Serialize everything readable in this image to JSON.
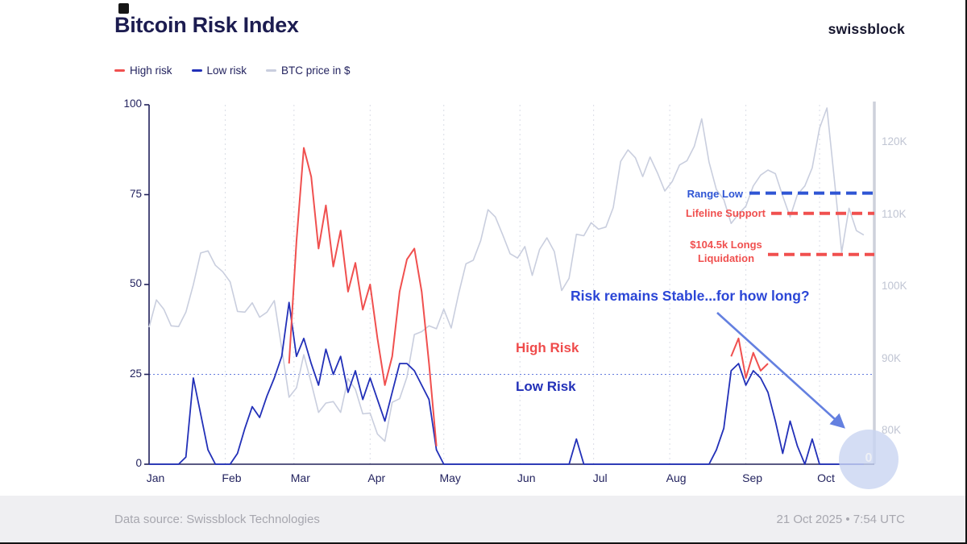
{
  "header": {
    "title": "Bitcoin Risk Index",
    "brand": "swissblock"
  },
  "legend": [
    {
      "label": "High risk",
      "color": "#f0504f"
    },
    {
      "label": "Low risk",
      "color": "#2230b8"
    },
    {
      "label": "BTC price in $",
      "color": "#c9cede"
    }
  ],
  "footer": {
    "source": "Data source: Swissblock Technologies",
    "timestamp": "21 Oct 2025 • 7:54 UTC"
  },
  "chart_data": {
    "type": "line",
    "title": "Bitcoin Risk Index",
    "period": "Jan–Oct 2025",
    "sample_step_days": 3,
    "months": [
      "Jan",
      "Feb",
      "Mar",
      "Apr",
      "May",
      "Jun",
      "Jul",
      "Aug",
      "Sep",
      "Oct"
    ],
    "month_start_days": [
      0,
      31,
      59,
      90,
      120,
      151,
      181,
      212,
      243,
      273
    ],
    "domain_days": [
      0,
      293
    ],
    "risk_axis": {
      "ticks": [
        0,
        25,
        50,
        75,
        100
      ],
      "range": [
        0,
        100
      ]
    },
    "price_axis": {
      "ticks": [
        "80K",
        "90K",
        "100K",
        "110K",
        "120K"
      ],
      "tick_values": [
        80,
        90,
        100,
        110,
        120
      ],
      "units": "thousand USD"
    },
    "threshold_line": {
      "value": 25,
      "color": "#4a66d8"
    },
    "series": [
      {
        "name": "High risk",
        "color": "#f0504f",
        "values": [
          null,
          null,
          null,
          null,
          null,
          null,
          null,
          null,
          null,
          null,
          null,
          null,
          null,
          null,
          null,
          null,
          null,
          null,
          null,
          28,
          62,
          88,
          80,
          60,
          72,
          55,
          65,
          48,
          56,
          43,
          50,
          35,
          22,
          30,
          48,
          57,
          60,
          48,
          28,
          5,
          null,
          null,
          null,
          null,
          null,
          null,
          null,
          null,
          null,
          null,
          null,
          null,
          null,
          null,
          null,
          null,
          null,
          null,
          null,
          null,
          null,
          null,
          null,
          null,
          null,
          null,
          null,
          null,
          null,
          null,
          null,
          null,
          null,
          null,
          null,
          null,
          null,
          null,
          null,
          30,
          35,
          24,
          31,
          26,
          28,
          null,
          null,
          null,
          null,
          null,
          null,
          null,
          null,
          null,
          null,
          null,
          null,
          null
        ]
      },
      {
        "name": "Low risk",
        "color": "#2230b8",
        "values": [
          0,
          0,
          0,
          0,
          0,
          2,
          24,
          14,
          4,
          0,
          0,
          0,
          3,
          10,
          16,
          13,
          19,
          24,
          30,
          45,
          30,
          35,
          28,
          22,
          32,
          25,
          30,
          20,
          26,
          18,
          24,
          18,
          12,
          20,
          28,
          28,
          26,
          22,
          18,
          4,
          0,
          0,
          0,
          0,
          0,
          0,
          0,
          0,
          0,
          0,
          0,
          0,
          0,
          0,
          0,
          0,
          0,
          0,
          7,
          0,
          0,
          0,
          0,
          0,
          0,
          0,
          0,
          0,
          0,
          0,
          0,
          0,
          0,
          0,
          0,
          0,
          0,
          4,
          10,
          26,
          28,
          22,
          26,
          24,
          20,
          12,
          3,
          12,
          5,
          0,
          7,
          0,
          0,
          0,
          0,
          0,
          0,
          0
        ]
      },
      {
        "name": "BTC price in $",
        "color": "#c9cede",
        "values": [
          94.4,
          98.2,
          96.9,
          94.6,
          94.5,
          96.5,
          100.3,
          104.7,
          105.0,
          103.0,
          102.1,
          100.7,
          96.6,
          96.5,
          97.8,
          95.8,
          96.5,
          98.1,
          91.5,
          84.7,
          86.0,
          90.6,
          86.7,
          82.6,
          83.9,
          84.1,
          82.6,
          87.3,
          85.8,
          82.4,
          82.5,
          79.6,
          78.6,
          84.0,
          84.5,
          87.5,
          93.4,
          93.8,
          94.6,
          94.2,
          96.9,
          94.3,
          99.0,
          103.2,
          103.7,
          106.4,
          110.7,
          109.7,
          107.2,
          104.6,
          104.0,
          105.6,
          101.6,
          105.2,
          106.8,
          104.9,
          99.5,
          101.2,
          107.3,
          107.1,
          108.9,
          108.0,
          108.3,
          111.0,
          117.4,
          119.0,
          117.9,
          115.3,
          118.0,
          115.8,
          113.3,
          114.6,
          116.9,
          117.5,
          119.5,
          123.3,
          117.3,
          113.5,
          112.1,
          108.8,
          110.1,
          111.2,
          114.0,
          115.5,
          116.2,
          115.7,
          112.6,
          109.7,
          112.8,
          114.0,
          116.5,
          122.0,
          124.8,
          115.0,
          104.8,
          110.9,
          107.8,
          107.2
        ]
      }
    ],
    "reference_lines": [
      {
        "label": "Range Low",
        "price_k": 113.0,
        "color": "#2f55d4"
      },
      {
        "label": "Lifeline Support",
        "price_k": 110.2,
        "color": "#f0504f"
      },
      {
        "label": "$104.5k Longs",
        "label2": "Liquidation",
        "price_k": 104.5,
        "color": "#f0504f"
      }
    ],
    "callouts": {
      "high_risk": "High Risk",
      "low_risk": "Low Risk",
      "stable": "Risk remains Stable...for how long?",
      "end_value": "0"
    }
  }
}
